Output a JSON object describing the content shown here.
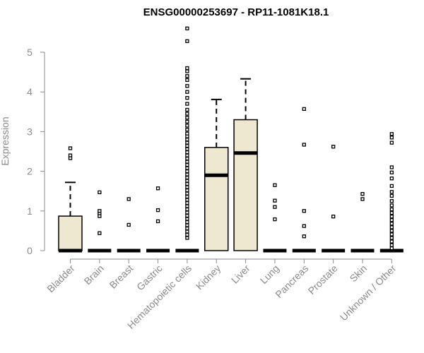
{
  "chart_data": {
    "type": "boxplot",
    "title": "ENSG00000253697 - RP11-1081K18.1",
    "ylabel": "Expression",
    "xlabel": "",
    "ylim": [
      0,
      5.6
    ],
    "yticks": [
      0,
      1,
      2,
      3,
      4,
      5
    ],
    "grid": false,
    "box_fill": "#efe8d0",
    "outline_color": "#000000",
    "axis_color": "#8a8a8a",
    "categories": [
      "Bladder",
      "Brain",
      "Breast",
      "Gastric",
      "Hematopoietic cells",
      "Kidney",
      "Liver",
      "Lung",
      "Pancreas",
      "Prostate",
      "Skin",
      "Unknown / Other"
    ],
    "boxes": [
      {
        "q1": 0,
        "median": 0,
        "q3": 0.87,
        "whisker_low": 0,
        "whisker_high": 1.72,
        "outliers": [
          2.58,
          2.4,
          2.33
        ]
      },
      {
        "q1": 0,
        "median": 0,
        "q3": 0,
        "whisker_low": 0,
        "whisker_high": 0,
        "outliers": [
          1.47,
          1.0,
          0.93,
          0.87,
          0.44
        ]
      },
      {
        "q1": 0,
        "median": 0,
        "q3": 0,
        "whisker_low": 0,
        "whisker_high": 0,
        "outliers": [
          1.3,
          0.65
        ]
      },
      {
        "q1": 0,
        "median": 0,
        "q3": 0,
        "whisker_low": 0,
        "whisker_high": 0,
        "outliers": [
          1.57,
          1.02,
          0.74
        ]
      },
      {
        "q1": 0,
        "median": 0,
        "q3": 0,
        "whisker_low": 0,
        "whisker_high": 0,
        "outliers": [
          5.6,
          5.28,
          4.6,
          4.52,
          4.4,
          4.3,
          4.15,
          4.0,
          3.85,
          3.7,
          3.55,
          3.45,
          3.35,
          3.25,
          3.15,
          3.05,
          2.95,
          2.88,
          2.8,
          2.72,
          2.64,
          2.56,
          2.48,
          2.4,
          2.32,
          2.24,
          2.16,
          2.08,
          2.0,
          1.92,
          1.84,
          1.76,
          1.68,
          1.6,
          1.52,
          1.44,
          1.36,
          1.28,
          1.2,
          1.12,
          1.04,
          0.96,
          0.88,
          0.8,
          0.72,
          0.64,
          0.56,
          0.48,
          0.4,
          0.32
        ]
      },
      {
        "q1": 0,
        "median": 1.9,
        "q3": 2.6,
        "whisker_low": 0,
        "whisker_high": 3.81,
        "outliers": []
      },
      {
        "q1": 0,
        "median": 2.46,
        "q3": 3.3,
        "whisker_low": 0,
        "whisker_high": 4.33,
        "outliers": []
      },
      {
        "q1": 0,
        "median": 0,
        "q3": 0,
        "whisker_low": 0,
        "whisker_high": 0,
        "outliers": [
          1.65,
          1.26,
          1.1,
          0.79
        ]
      },
      {
        "q1": 0,
        "median": 0,
        "q3": 0,
        "whisker_low": 0,
        "whisker_high": 0,
        "outliers": [
          3.57,
          2.67,
          1.0,
          0.62,
          0.36
        ]
      },
      {
        "q1": 0,
        "median": 0,
        "q3": 0,
        "whisker_low": 0,
        "whisker_high": 0,
        "outliers": [
          2.62,
          0.86
        ]
      },
      {
        "q1": 0,
        "median": 0,
        "q3": 0,
        "whisker_low": 0,
        "whisker_high": 0,
        "outliers": [
          1.43,
          1.3
        ]
      },
      {
        "q1": 0,
        "median": 0,
        "q3": 0,
        "whisker_low": 0,
        "whisker_high": 0,
        "outliers": [
          2.94,
          2.85,
          2.72,
          2.1,
          1.97,
          1.82,
          1.63,
          1.48,
          1.38,
          1.25,
          1.14,
          1.04,
          0.95,
          0.86,
          0.77,
          0.68,
          0.59,
          0.5,
          0.41,
          0.32,
          0.23,
          0.14,
          0.06
        ]
      }
    ]
  }
}
